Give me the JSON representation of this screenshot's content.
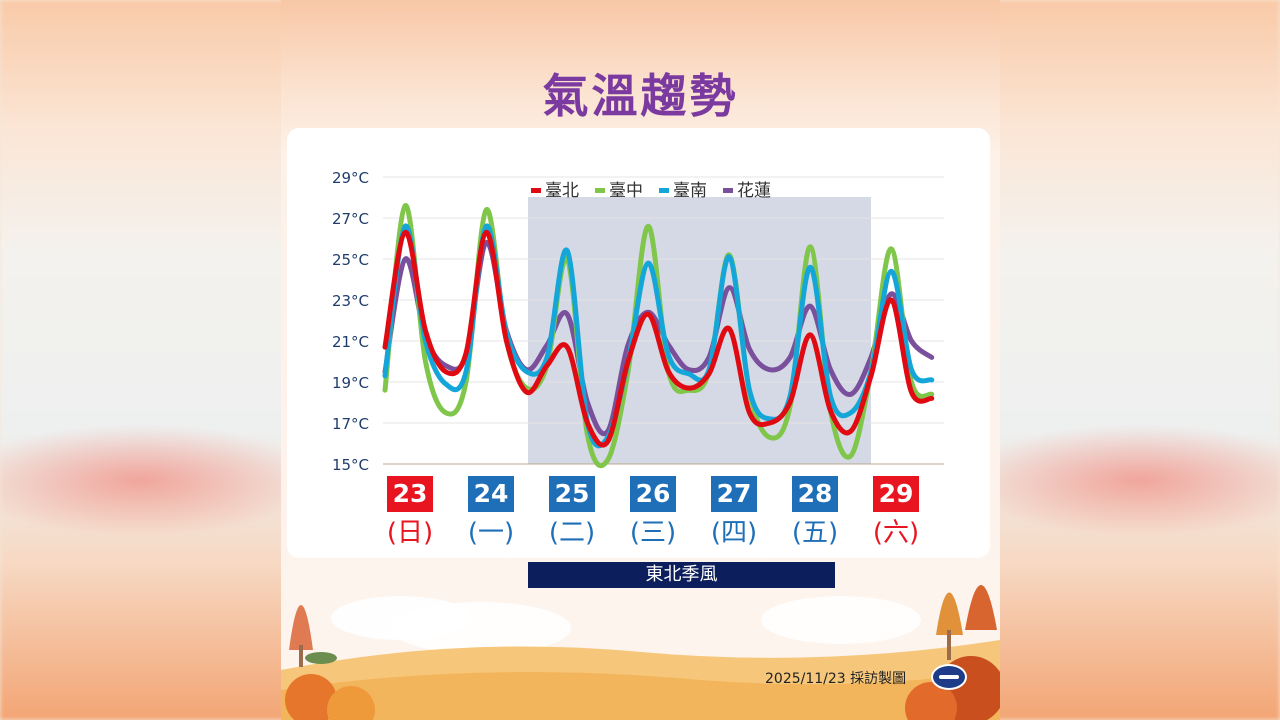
{
  "title": "氣溫趨勢",
  "monsoon_label": "東北季風",
  "credit": "2025/11/23 採訪製圖",
  "colors": {
    "title": "#7b3aa0",
    "weekend": "#e8141f",
    "weekday": "#1f6fb8",
    "monsoon_band": "#0d1e5c",
    "shade": "#cdd2e0"
  },
  "days": [
    {
      "date": "23",
      "weekday": "(日)",
      "weekend": true
    },
    {
      "date": "24",
      "weekday": "(一)",
      "weekend": false
    },
    {
      "date": "25",
      "weekday": "(二)",
      "weekend": false
    },
    {
      "date": "26",
      "weekday": "(三)",
      "weekend": false
    },
    {
      "date": "27",
      "weekday": "(四)",
      "weekend": false
    },
    {
      "date": "28",
      "weekday": "(五)",
      "weekend": false
    },
    {
      "date": "29",
      "weekday": "(六)",
      "weekend": true
    }
  ],
  "chart_data": {
    "type": "line",
    "title": "",
    "xlabel": "",
    "ylabel": "",
    "ylim": [
      15,
      29
    ],
    "y_ticks": [
      "15°C",
      "17°C",
      "19°C",
      "21°C",
      "23°C",
      "25°C",
      "27°C",
      "29°C"
    ],
    "y_tick_values": [
      15,
      17,
      19,
      21,
      23,
      25,
      27,
      29
    ],
    "grid": true,
    "legend_position": "top-center",
    "shaded_range": {
      "from": "25",
      "to": "28",
      "label": "東北季風"
    },
    "x": [
      0,
      0.25,
      0.5,
      0.75,
      1,
      1.25,
      1.5,
      1.75,
      2,
      2.25,
      2.5,
      2.75,
      3,
      3.25,
      3.5,
      3.75,
      4,
      4.25,
      4.5,
      4.75,
      5,
      5.25,
      5.5,
      5.75,
      6,
      6.25,
      6.5,
      6.75
    ],
    "series": [
      {
        "name": "臺北",
        "color": "#e00b12",
        "values": [
          20.7,
          26.3,
          21.5,
          19.5,
          20.4,
          26.3,
          21.0,
          18.5,
          19.8,
          20.7,
          17.0,
          16.1,
          20.0,
          22.3,
          19.5,
          18.7,
          19.4,
          21.6,
          17.5,
          17.0,
          18.0,
          21.3,
          17.6,
          16.6,
          19.3,
          23.0,
          18.5,
          18.2
        ]
      },
      {
        "name": "臺中",
        "color": "#7fc64a",
        "values": [
          18.6,
          27.6,
          20.0,
          17.5,
          19.0,
          27.4,
          21.0,
          18.7,
          19.8,
          25.0,
          16.4,
          15.2,
          19.5,
          26.6,
          19.5,
          18.6,
          19.5,
          25.2,
          18.5,
          16.3,
          17.8,
          25.6,
          17.6,
          15.4,
          19.5,
          25.5,
          19.0,
          18.4
        ]
      },
      {
        "name": "臺南",
        "color": "#14a6d8",
        "values": [
          19.3,
          26.6,
          21.0,
          18.9,
          19.5,
          26.6,
          21.4,
          19.5,
          20.2,
          25.4,
          17.0,
          16.3,
          20.0,
          24.8,
          20.3,
          19.4,
          19.6,
          25.1,
          18.6,
          17.2,
          18.3,
          24.6,
          18.3,
          17.5,
          19.5,
          24.4,
          19.6,
          19.1
        ]
      },
      {
        "name": "花蓮",
        "color": "#7a4f9c",
        "values": [
          19.5,
          25.0,
          21.2,
          19.8,
          20.3,
          25.8,
          21.5,
          19.6,
          20.8,
          22.3,
          18.0,
          16.6,
          20.8,
          22.4,
          20.8,
          19.6,
          20.2,
          23.6,
          20.6,
          19.6,
          20.2,
          22.7,
          19.6,
          18.4,
          20.2,
          23.3,
          21.0,
          20.2
        ]
      }
    ]
  }
}
